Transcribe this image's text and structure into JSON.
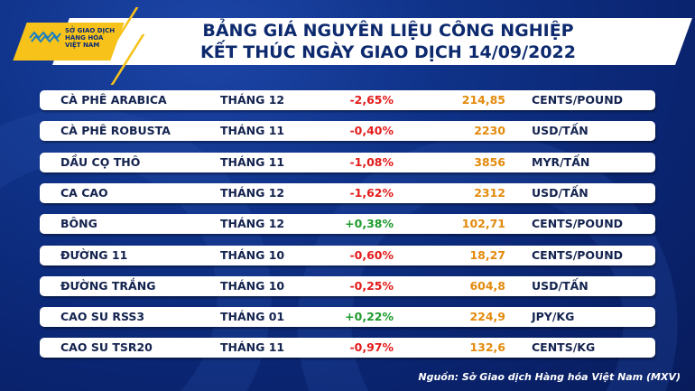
{
  "logo": {
    "text": [
      "SỞ GIAO DỊCH",
      "HÀNG HÓA",
      "VIỆT NAM"
    ]
  },
  "title": {
    "line1": "BẢNG GIÁ NGUYÊN LIỆU CÔNG NGHIỆP",
    "line2": "KẾT THÚC NGÀY GIAO DỊCH 14/09/2022"
  },
  "colors": {
    "negative": "#e31b1b",
    "positive": "#1e9a2c",
    "price": "#e38a0c",
    "accent": "#f7c21a",
    "background": "#0f3288"
  },
  "rows": [
    {
      "name": "CÀ PHÊ ARABICA",
      "month": "THÁNG 12",
      "change": "-2,65%",
      "price": "214,85",
      "unit": "CENTS/POUND"
    },
    {
      "name": "CÀ PHÊ ROBUSTA",
      "month": "THÁNG 11",
      "change": "-0,40%",
      "price": "2230",
      "unit": "USD/TẤN"
    },
    {
      "name": "DẦU CỌ THÔ",
      "month": "THÁNG 11",
      "change": "-1,08%",
      "price": "3856",
      "unit": "MYR/TẤN"
    },
    {
      "name": "CA CAO",
      "month": "THÁNG 12",
      "change": "-1,62%",
      "price": "2312",
      "unit": "USD/TẤN"
    },
    {
      "name": "BÔNG",
      "month": "THÁNG 12",
      "change": "+0,38%",
      "price": "102,71",
      "unit": "CENTS/POUND"
    },
    {
      "name": "ĐƯỜNG 11",
      "month": "THÁNG 10",
      "change": "-0,60%",
      "price": "18,27",
      "unit": "CENTS/POUND"
    },
    {
      "name": "ĐƯỜNG TRẮNG",
      "month": "THÁNG 10",
      "change": "-0,25%",
      "price": "604,8",
      "unit": "USD/TẤN"
    },
    {
      "name": "CAO SU RSS3",
      "month": "THÁNG 01",
      "change": "+0,22%",
      "price": "224,9",
      "unit": "JPY/KG"
    },
    {
      "name": "CAO SU TSR20",
      "month": "THÁNG 11",
      "change": "-0,97%",
      "price": "132,6",
      "unit": "CENTS/KG"
    }
  ],
  "source": "Nguồn: Sở Giao dịch Hàng hóa Việt Nam (MXV)"
}
